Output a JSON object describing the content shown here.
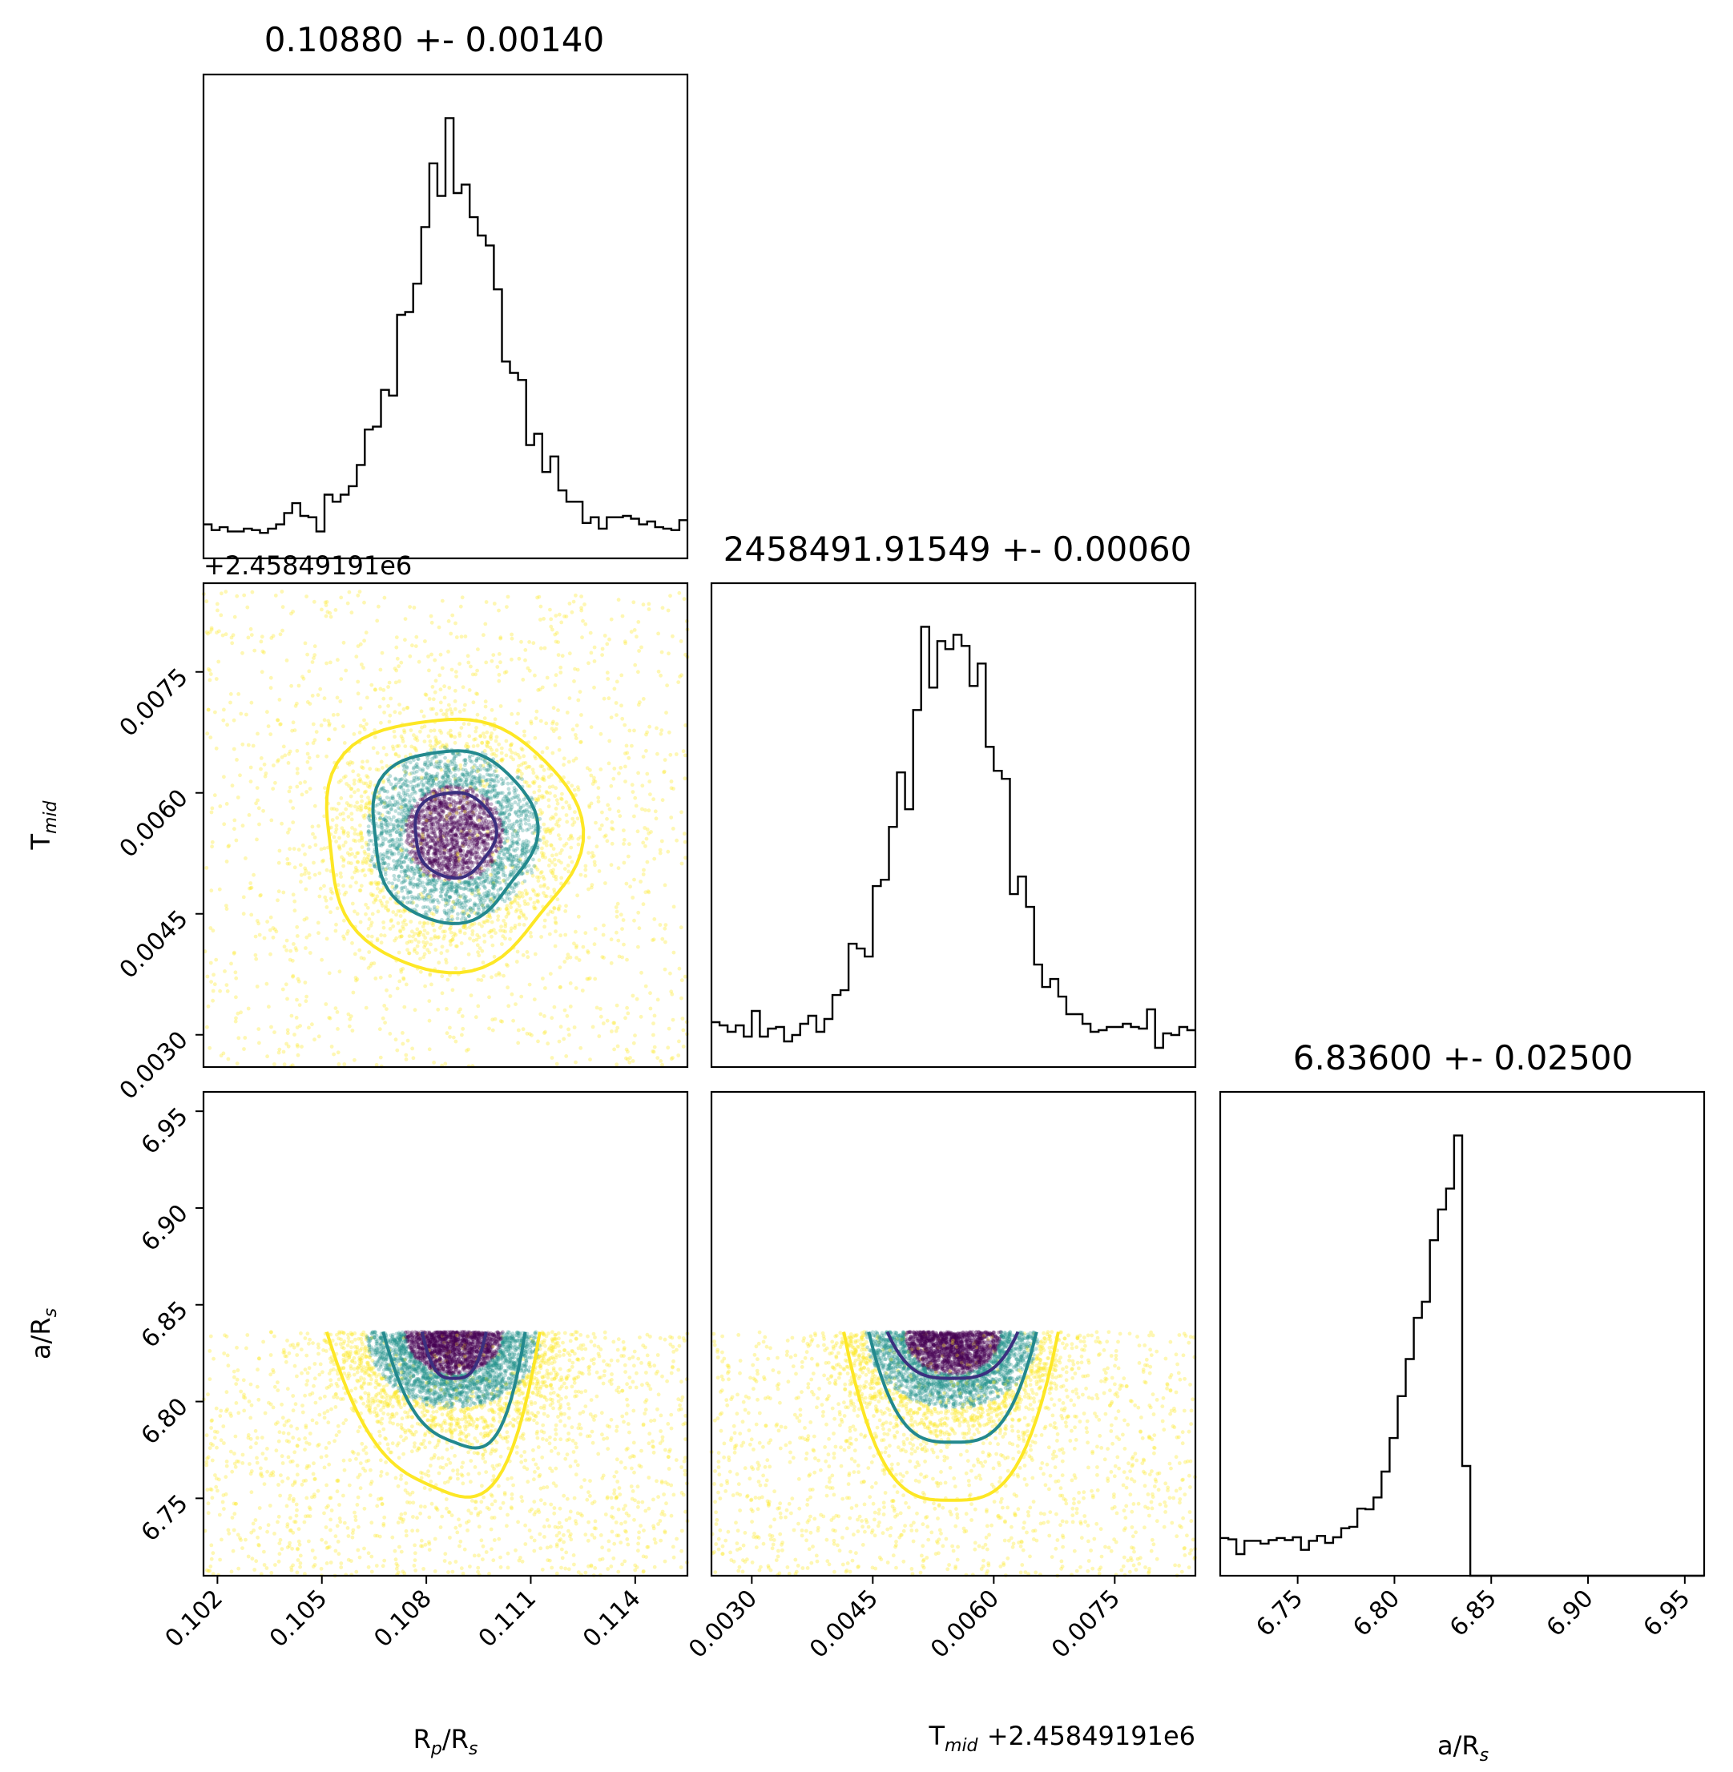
{
  "chart_data": [
    {
      "type": "histogram",
      "panel": "Rp/Rs marginal",
      "title": "0.10880 +- 0.00140",
      "parameter": "Rp/Rs",
      "xlim": [
        0.1016,
        0.1155
      ],
      "center": 0.1088,
      "sigma": 0.0014,
      "x_ticks": [
        "0.102",
        "0.105",
        "0.108",
        "0.111",
        "0.114"
      ]
    },
    {
      "type": "scatter",
      "panel": "Tmid vs Rp/Rs",
      "x_param": "Rp/Rs",
      "y_param": "Tmid",
      "ylabel": "T_mid",
      "y_offset_text": "+2.45849191e6",
      "xlim": [
        0.1016,
        0.1155
      ],
      "ylim": [
        0.0026,
        0.0086
      ],
      "y_ticks": [
        "0.0030",
        "0.0045",
        "0.0060",
        "0.0075"
      ],
      "center": [
        0.1088,
        0.00549
      ],
      "contour_levels": [
        "inner (purple)",
        "middle (teal)",
        "outer (yellow)"
      ]
    },
    {
      "type": "histogram",
      "panel": "Tmid marginal",
      "title": "2458491.91549 +- 0.00060",
      "parameter": "Tmid",
      "xlim": [
        0.0025,
        0.0085
      ],
      "center": 0.00549,
      "sigma": 0.0006
    },
    {
      "type": "scatter",
      "panel": "a/Rs vs Rp/Rs",
      "x_param": "Rp/Rs",
      "y_param": "a/Rs",
      "ylabel": "a/Rs",
      "xlabel": "Rp/Rs",
      "xlim": [
        0.1016,
        0.1155
      ],
      "ylim": [
        6.71,
        6.96
      ],
      "x_ticks": [
        "0.102",
        "0.105",
        "0.108",
        "0.111",
        "0.114"
      ],
      "y_ticks": [
        "6.75",
        "6.80",
        "6.85",
        "6.90",
        "6.95"
      ],
      "upper_cutoff": 6.836
    },
    {
      "type": "scatter",
      "panel": "a/Rs vs Tmid",
      "x_param": "Tmid",
      "y_param": "a/Rs",
      "xlabel": "T_mid",
      "x_offset_text": "+2.45849191e6",
      "xlim": [
        0.0025,
        0.0085
      ],
      "ylim": [
        6.71,
        6.96
      ],
      "x_ticks": [
        "0.0030",
        "0.0045",
        "0.0060",
        "0.0075"
      ],
      "upper_cutoff": 6.836
    },
    {
      "type": "histogram",
      "panel": "a/Rs marginal",
      "title": "6.83600 +- 0.02500",
      "parameter": "a/Rs",
      "xlabel": "a/Rs",
      "xlim": [
        6.71,
        6.96
      ],
      "x_ticks": [
        "6.75",
        "6.80",
        "6.85",
        "6.90",
        "6.95"
      ],
      "upper_cutoff": 6.836,
      "peak": 6.827
    }
  ],
  "colors": {
    "inner_contour": "#3b2f7f",
    "middle_contour": "#23898e",
    "outer_contour": "#fde725",
    "points_dense": "#440154",
    "points_mid": "#21918c",
    "points_sparse": "#fde725"
  }
}
